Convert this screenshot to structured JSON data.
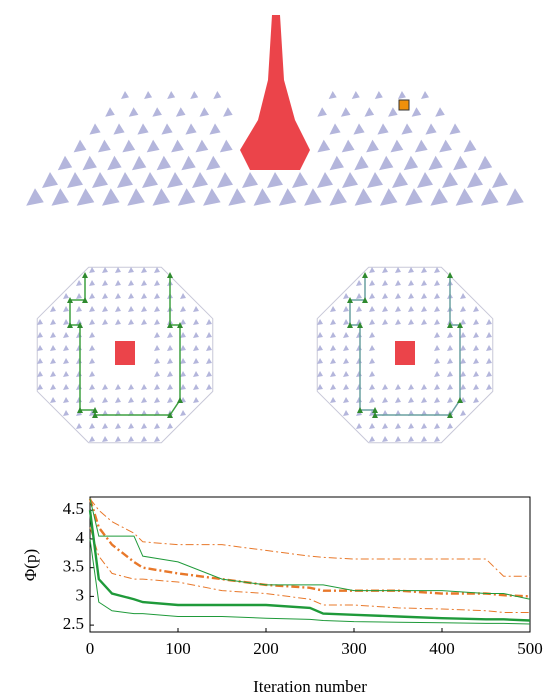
{
  "chart_data": {
    "type": "line",
    "y_label": "Φ(p)",
    "x_label": "Iteration number",
    "x": [
      0,
      10,
      25,
      50,
      60,
      100,
      150,
      200,
      250,
      265,
      300,
      350,
      400,
      450,
      470,
      500
    ],
    "xlim": [
      0,
      500
    ],
    "xticks": [
      0,
      100,
      200,
      300,
      400,
      500
    ],
    "ylim": [
      2.38,
      4.73
    ],
    "yticks": [
      2.5,
      3,
      3.5,
      4,
      4.5
    ],
    "series": [
      {
        "color": "#e8782a",
        "dash": "dashdot",
        "width": 1,
        "values": [
          4.7,
          4.5,
          4.3,
          4.1,
          3.95,
          3.9,
          3.9,
          3.8,
          3.7,
          3.68,
          3.65,
          3.65,
          3.65,
          3.65,
          3.35,
          3.35
        ]
      },
      {
        "color": "#e8782a",
        "dash": "dashdot",
        "width": 2.4,
        "values": [
          4.7,
          4.2,
          3.9,
          3.6,
          3.5,
          3.4,
          3.3,
          3.2,
          3.15,
          3.1,
          3.1,
          3.1,
          3.05,
          3.05,
          3.02,
          3.0
        ]
      },
      {
        "color": "#e8782a",
        "dash": "dashdot",
        "width": 1,
        "values": [
          4.2,
          3.7,
          3.4,
          3.3,
          3.3,
          3.25,
          3.1,
          3.05,
          2.95,
          2.85,
          2.85,
          2.8,
          2.78,
          2.75,
          2.72,
          2.72
        ]
      },
      {
        "color": "#1f9a3a",
        "dash": "solid",
        "width": 1,
        "values": [
          4.7,
          4.05,
          4.05,
          4.05,
          3.7,
          3.6,
          3.3,
          3.2,
          3.2,
          3.2,
          3.1,
          3.1,
          3.1,
          3.05,
          3.05,
          2.95
        ]
      },
      {
        "color": "#1f9a3a",
        "dash": "solid",
        "width": 2.4,
        "values": [
          4.5,
          3.3,
          3.05,
          2.95,
          2.9,
          2.85,
          2.85,
          2.85,
          2.8,
          2.7,
          2.68,
          2.65,
          2.62,
          2.6,
          2.6,
          2.58
        ]
      },
      {
        "color": "#1f9a3a",
        "dash": "solid",
        "width": 1,
        "values": [
          4.0,
          2.9,
          2.75,
          2.7,
          2.7,
          2.65,
          2.65,
          2.62,
          2.6,
          2.58,
          2.56,
          2.55,
          2.54,
          2.53,
          2.53,
          2.52
        ]
      }
    ]
  }
}
